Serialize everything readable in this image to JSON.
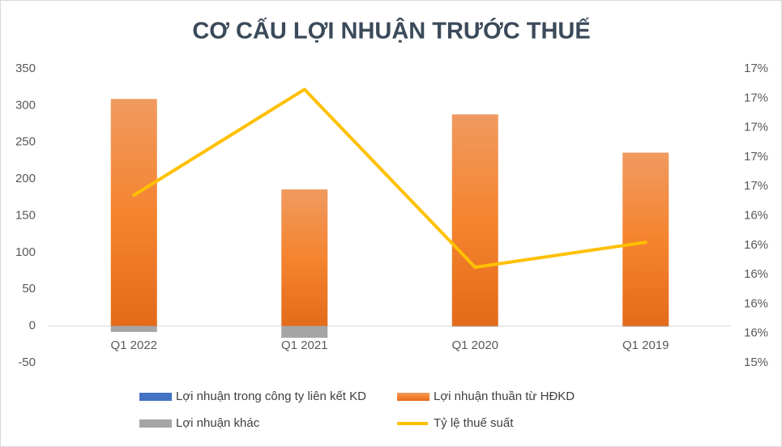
{
  "chart_data": {
    "type": "bar",
    "title": "CƠ CẤU LỢI NHUẬN TRƯỚC THUẾ",
    "categories": [
      "Q1 2022",
      "Q1 2021",
      "Q1 2020",
      "Q1 2019"
    ],
    "series": [
      {
        "name": "Lợi nhuận trong công ty liên kết KD",
        "type": "bar",
        "color": "#4472c4",
        "values": [
          0,
          0,
          0,
          0
        ]
      },
      {
        "name": "Lợi nhuận thuần từ HĐKD",
        "type": "bar",
        "color": "#ed7d31",
        "values": [
          309,
          186,
          288,
          236
        ]
      },
      {
        "name": "Lợi nhuận khác",
        "type": "bar",
        "color": "#a5a5a5",
        "values": [
          -8,
          -16,
          -1,
          -1
        ]
      },
      {
        "name": "Tỷ lệ thuế suất",
        "type": "line",
        "axis": "y2",
        "color": "#ffc000",
        "values": [
          16.54,
          17.26,
          16.05,
          16.22
        ]
      }
    ],
    "ylim": [
      -50,
      350
    ],
    "yticks": [
      -50,
      0,
      50,
      100,
      150,
      200,
      250,
      300,
      350
    ],
    "y2lim": [
      15.4,
      17.4
    ],
    "y2ticks": [
      {
        "value": 15.4,
        "label": "15%"
      },
      {
        "value": 15.6,
        "label": "16%"
      },
      {
        "value": 15.8,
        "label": "16%"
      },
      {
        "value": 16.0,
        "label": "16%"
      },
      {
        "value": 16.2,
        "label": "16%"
      },
      {
        "value": 16.4,
        "label": "16%"
      },
      {
        "value": 16.6,
        "label": "17%"
      },
      {
        "value": 16.8,
        "label": "17%"
      },
      {
        "value": 17.0,
        "label": "17%"
      },
      {
        "value": 17.2,
        "label": "17%"
      },
      {
        "value": 17.4,
        "label": "17%"
      }
    ],
    "grid": false,
    "legend": "bottom"
  }
}
